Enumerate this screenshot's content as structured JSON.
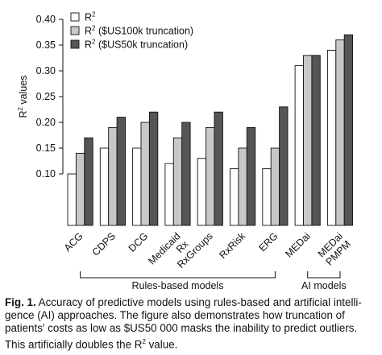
{
  "chart_data": {
    "type": "bar",
    "ylabel_base": "R",
    "ylabel_sup": "2",
    "ylabel_rest": " values",
    "ylim": [
      0,
      0.4
    ],
    "yticks": [
      "0.10",
      "0.15",
      "0.20",
      "0.25",
      "0.30",
      "0.35",
      "0.40"
    ],
    "ytick_values": [
      0.1,
      0.15,
      0.2,
      0.25,
      0.3,
      0.35,
      0.4
    ],
    "grid": false,
    "legend_position": "top-left",
    "categories": [
      {
        "lines": [
          "ACG"
        ]
      },
      {
        "lines": [
          "CDPS"
        ]
      },
      {
        "lines": [
          "DCG"
        ]
      },
      {
        "lines": [
          "Medicaid",
          "Rx"
        ]
      },
      {
        "lines": [
          "RxGroups"
        ]
      },
      {
        "lines": [
          "RxRisk"
        ]
      },
      {
        "lines": [
          "ERG"
        ]
      },
      {
        "lines": [
          "MEDai"
        ]
      },
      {
        "lines": [
          "MEDai",
          "PMPM"
        ]
      }
    ],
    "series": [
      {
        "name_base": "R",
        "name_sup": "2",
        "name_rest": "",
        "color": "#ffffff",
        "values": [
          0.1,
          0.15,
          0.15,
          0.12,
          0.13,
          0.11,
          0.11,
          0.31,
          0.34
        ]
      },
      {
        "name_base": "R",
        "name_sup": "2",
        "name_rest": " ($US100k truncation)",
        "color": "#c8c8c8",
        "values": [
          0.14,
          0.19,
          0.2,
          0.17,
          0.19,
          0.15,
          0.15,
          0.33,
          0.36
        ]
      },
      {
        "name_base": "R",
        "name_sup": "2",
        "name_rest": " ($US50k truncation)",
        "color": "#555555",
        "values": [
          0.17,
          0.21,
          0.22,
          0.2,
          0.22,
          0.19,
          0.23,
          0.33,
          0.37
        ]
      }
    ],
    "groups": [
      {
        "label": "Rules-based models",
        "from": 0,
        "to": 6
      },
      {
        "label": "AI models",
        "from": 7,
        "to": 8
      }
    ]
  },
  "caption": {
    "label": "Fig. 1.",
    "part1": " Accuracy of predictive models using rules-based and artificial intelli-gence (AI) approaches. The figure also demonstrates how truncation of patients' costs as low as $US50 000 masks the inability to predict outliers. This artificially doubles the R",
    "sup": "2",
    "part2": " value."
  }
}
